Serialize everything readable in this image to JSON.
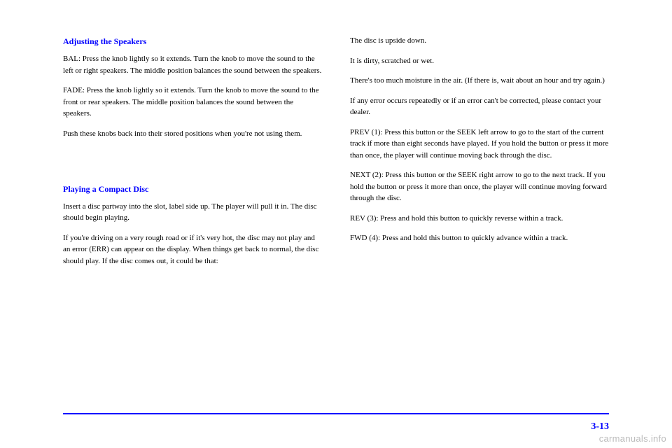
{
  "leftColumn": {
    "heading1": "Adjusting the Speakers",
    "para1": "BAL: Press the knob lightly so it extends. Turn the knob to move the sound to the left or right speakers. The middle position balances the sound between the speakers.",
    "para2": "FADE: Press the knob lightly so it extends. Turn the knob to move the sound to the front or rear speakers. The middle position balances the sound between the speakers.",
    "para3": "Push these knobs back into their stored positions when you're not using them.",
    "heading2": "Playing a Compact Disc",
    "para4": "Insert a disc partway into the slot, label side up. The player will pull it in. The disc should begin playing.",
    "para5": "If you're driving on a very rough road or if it's very hot, the disc may not play and an error (ERR) can appear on the display. When things get back to normal, the disc should play. If the disc comes out, it could be that:"
  },
  "rightColumn": {
    "bullet1": "The disc is upside down.",
    "bullet2": "It is dirty, scratched or wet.",
    "bullet3": "There's too much moisture in the air. (If there is, wait about an hour and try again.)",
    "para1": "If any error occurs repeatedly or if an error can't be corrected, please contact your dealer.",
    "para2": "PREV (1): Press this button or the SEEK left arrow to go to the start of the current track if more than eight seconds have played. If you hold the button or press it more than once, the player will continue moving back through the disc.",
    "para3": "NEXT (2): Press this button or the SEEK right arrow to go to the next track. If you hold the button or press it more than once, the player will continue moving forward through the disc.",
    "para4": "REV (3): Press and hold this button to quickly reverse within a track.",
    "para5": "FWD (4): Press and hold this button to quickly advance within a track."
  },
  "pageNumber": "3-13",
  "watermark": "carmanuals.info",
  "colors": {
    "heading": "#0000ff",
    "footerLine": "#0000ff",
    "pageNum": "#0000ff",
    "body": "#000000",
    "watermark": "#bbbbbb",
    "background": "#ffffff"
  }
}
